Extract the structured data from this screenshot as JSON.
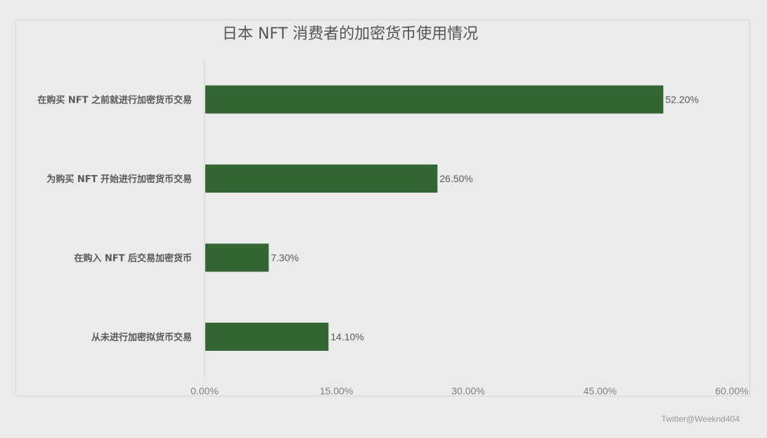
{
  "chart_data": {
    "type": "bar",
    "orientation": "horizontal",
    "title": "日本 NFT 消费者的加密货币使用情况",
    "categories": [
      "在购买 NFT 之前就进行加密货币交易",
      "为购买 NFT 开始进行加密货币交易",
      "在购入 NFT 后交易加密货币",
      "从未进行加密拟货币交易"
    ],
    "values": [
      52.2,
      26.5,
      7.3,
      14.1
    ],
    "value_labels": [
      "52.20%",
      "26.50%",
      "7.30%",
      "14.10%"
    ],
    "xlim": [
      0,
      60
    ],
    "x_ticks": [
      0,
      15,
      30,
      45,
      60
    ],
    "x_tick_labels": [
      "0.00%",
      "15.00%",
      "30.00%",
      "45.00%",
      "60.00%"
    ],
    "bar_color": "#336633",
    "grid": false,
    "legend": "none"
  },
  "watermark": "Twitter@Weeknd404"
}
